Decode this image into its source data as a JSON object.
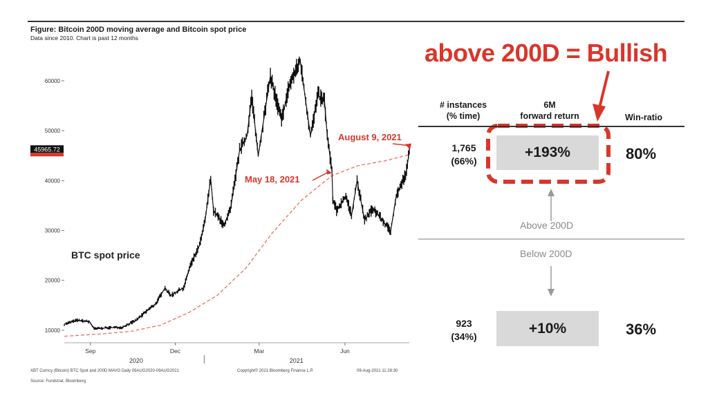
{
  "figure": {
    "title": "Figure: Bitcoin 200D moving average and Bitcoin spot price",
    "subtitle": "Data since 2010.  Chart is past 12 months"
  },
  "chart_data": {
    "type": "line",
    "title": "Figure: Bitcoin 200D moving average and Bitcoin spot price",
    "ylim": [
      7500,
      66500
    ],
    "y_ticks": [
      10000,
      20000,
      30000,
      40000,
      50000,
      60000
    ],
    "y_tick_labels": [
      "10000",
      "20000",
      "30000",
      "40000",
      "50000",
      "60000"
    ],
    "x_range": [
      "2020-08-04",
      "2021-08-09"
    ],
    "x_ticks": [
      {
        "date": "2020-09-01",
        "label": "Sep"
      },
      {
        "date": "2020-12-01",
        "label": "Dec"
      },
      {
        "date": "2021-03-01",
        "label": "Mar"
      },
      {
        "date": "2021-06-01",
        "label": "Jun"
      }
    ],
    "year_labels": [
      {
        "date": "2020-10-20",
        "label": "2020"
      },
      {
        "date": "2021-04-10",
        "label": "2021"
      }
    ],
    "last_price_label": "45965.72",
    "series": [
      {
        "name": "BTC spot price",
        "color": "#111111",
        "points": [
          [
            "2020-08-04",
            11200
          ],
          [
            "2020-08-17",
            12000
          ],
          [
            "2020-08-31",
            11700
          ],
          [
            "2020-09-05",
            10300
          ],
          [
            "2020-09-20",
            10500
          ],
          [
            "2020-10-05",
            10600
          ],
          [
            "2020-10-20",
            12000
          ],
          [
            "2020-10-31",
            13800
          ],
          [
            "2020-11-10",
            15300
          ],
          [
            "2020-11-20",
            18500
          ],
          [
            "2020-11-26",
            17000
          ],
          [
            "2020-12-10",
            18500
          ],
          [
            "2020-12-17",
            23000
          ],
          [
            "2020-12-27",
            27000
          ],
          [
            "2021-01-02",
            32000
          ],
          [
            "2021-01-08",
            40500
          ],
          [
            "2021-01-11",
            34000
          ],
          [
            "2021-01-22",
            31000
          ],
          [
            "2021-01-29",
            34000
          ],
          [
            "2021-02-08",
            46000
          ],
          [
            "2021-02-16",
            49000
          ],
          [
            "2021-02-21",
            57000
          ],
          [
            "2021-02-28",
            45000
          ],
          [
            "2021-03-13",
            61000
          ],
          [
            "2021-03-25",
            52000
          ],
          [
            "2021-04-02",
            59000
          ],
          [
            "2021-04-14",
            64000
          ],
          [
            "2021-04-25",
            49000
          ],
          [
            "2021-05-03",
            57000
          ],
          [
            "2021-05-10",
            56000
          ],
          [
            "2021-05-13",
            49000
          ],
          [
            "2021-05-18",
            42000
          ],
          [
            "2021-05-19",
            36000
          ],
          [
            "2021-05-23",
            34000
          ],
          [
            "2021-06-02",
            37000
          ],
          [
            "2021-06-08",
            33000
          ],
          [
            "2021-06-14",
            40000
          ],
          [
            "2021-06-22",
            32000
          ],
          [
            "2021-07-01",
            34500
          ],
          [
            "2021-07-20",
            29800
          ],
          [
            "2021-07-26",
            37000
          ],
          [
            "2021-08-01",
            39500
          ],
          [
            "2021-08-06",
            42000
          ],
          [
            "2021-08-09",
            45965
          ]
        ]
      },
      {
        "name": "",
        "color": "#e8705f",
        "dashed": true,
        "points": [
          [
            "2020-08-04",
            8800
          ],
          [
            "2020-09-15",
            9300
          ],
          [
            "2020-10-15",
            9800
          ],
          [
            "2020-11-15",
            11000
          ],
          [
            "2020-12-15",
            13500
          ],
          [
            "2021-01-15",
            17000
          ],
          [
            "2021-02-15",
            22500
          ],
          [
            "2021-03-15",
            29500
          ],
          [
            "2021-04-15",
            36000
          ],
          [
            "2021-05-18",
            41000
          ],
          [
            "2021-06-15",
            43000
          ],
          [
            "2021-07-15",
            44000
          ],
          [
            "2021-08-09",
            45200
          ]
        ]
      }
    ],
    "annotations": [
      {
        "text": "BTC spot price",
        "date": "2020-08-10",
        "y": 16500
      },
      {
        "text": "May 18, 2021",
        "date": "2021-05-18",
        "y": 41500,
        "color": "#d9362b"
      },
      {
        "text": "August 9, 2021",
        "date": "2021-08-09",
        "y": 46200,
        "color": "#d9362b"
      }
    ]
  },
  "footer": {
    "left": "XBT Curncy (Bitcoin) BTC Spot and 200D MAVG  Daily 09AUG2020-09AUG2021",
    "center": "Copyright© 2021 Bloomberg Finance L.P.",
    "right": "09-Aug-2021 11:28:30",
    "source": "Source: Fundstrat, Bloomberg"
  },
  "table": {
    "headline": "above 200D = Bullish",
    "headers": {
      "instances": [
        "# instances",
        "(% time)"
      ],
      "return": [
        "6M",
        "forward return"
      ],
      "winratio": "Win-ratio"
    },
    "above": {
      "instances": "1,765",
      "pct": "(66%)",
      "return": "+193%",
      "win": "80%",
      "label": "Above 200D"
    },
    "below": {
      "instances": "923",
      "pct": "(34%)",
      "return": "+10%",
      "win": "36%",
      "label": "Below 200D"
    },
    "colors": {
      "accent": "#d9362b",
      "cell": "#d9d9d9",
      "arrow": "#9a9a9a"
    }
  }
}
